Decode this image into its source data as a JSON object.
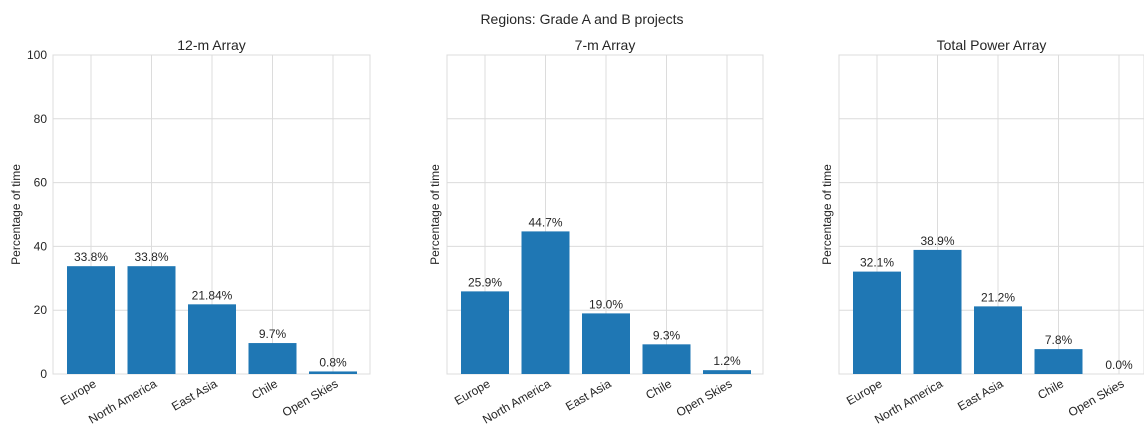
{
  "figure": {
    "title": "Regions: Grade A and B projects"
  },
  "colors": {
    "bar": "#1f77b4",
    "grid": "#dcdcdc",
    "text": "#262626"
  },
  "chart_data": [
    {
      "type": "bar",
      "title": "12-m Array",
      "ylabel": "Percentage of time",
      "xlabel": "",
      "categories": [
        "Europe",
        "North America",
        "East Asia",
        "Chile",
        "Open Skies"
      ],
      "values": [
        33.8,
        33.8,
        21.84,
        9.7,
        0.8
      ],
      "labels": [
        "33.8%",
        "33.8%",
        "21.84%",
        "9.7%",
        "0.8%"
      ],
      "ylim": [
        0,
        100
      ],
      "yticks": [
        0,
        20,
        40,
        60,
        80,
        100
      ],
      "show_ytick_labels": true,
      "grid": true
    },
    {
      "type": "bar",
      "title": "7-m Array",
      "ylabel": "Percentage of time",
      "xlabel": "",
      "categories": [
        "Europe",
        "North America",
        "East Asia",
        "Chile",
        "Open Skies"
      ],
      "values": [
        25.9,
        44.7,
        19.0,
        9.3,
        1.2
      ],
      "labels": [
        "25.9%",
        "44.7%",
        "19.0%",
        "9.3%",
        "1.2%"
      ],
      "ylim": [
        0,
        100
      ],
      "yticks": [
        0,
        20,
        40,
        60,
        80,
        100
      ],
      "show_ytick_labels": false,
      "grid": true
    },
    {
      "type": "bar",
      "title": "Total Power Array",
      "ylabel": "Percentage of time",
      "xlabel": "",
      "categories": [
        "Europe",
        "North America",
        "East Asia",
        "Chile",
        "Open Skies"
      ],
      "values": [
        32.1,
        38.9,
        21.2,
        7.8,
        0.0
      ],
      "labels": [
        "32.1%",
        "38.9%",
        "21.2%",
        "7.8%",
        "0.0%"
      ],
      "ylim": [
        0,
        100
      ],
      "yticks": [
        0,
        20,
        40,
        60,
        80,
        100
      ],
      "show_ytick_labels": false,
      "grid": true
    }
  ]
}
